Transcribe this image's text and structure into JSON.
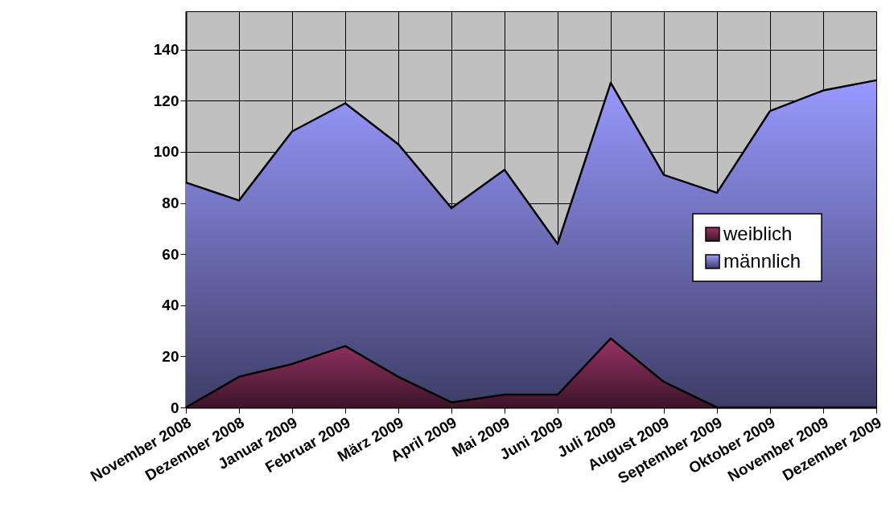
{
  "chart_data": {
    "type": "area",
    "categories": [
      "November 2008",
      "Dezember 2008",
      "Januar 2009",
      "Februar 2009",
      "März 2009",
      "April 2009",
      "Mai 2009",
      "Juni 2009",
      "Juli 2009",
      "August 2009",
      "September 2009",
      "Oktober 2009",
      "November 2009",
      "Dezember 2009"
    ],
    "series": [
      {
        "name": "weiblich",
        "color": "#993366",
        "values": [
          0,
          12,
          17,
          24,
          12,
          2,
          5,
          5,
          27,
          10,
          0,
          0,
          0,
          0
        ]
      },
      {
        "name": "männlich",
        "color": "#9999ff",
        "values": [
          88,
          81,
          108,
          119,
          103,
          78,
          93,
          64,
          127,
          91,
          84,
          116,
          124,
          128
        ]
      }
    ],
    "ylim": [
      0,
      155
    ],
    "yticks": [
      0,
      20,
      40,
      60,
      80,
      100,
      120,
      140
    ],
    "grid": true,
    "legend": "right"
  }
}
